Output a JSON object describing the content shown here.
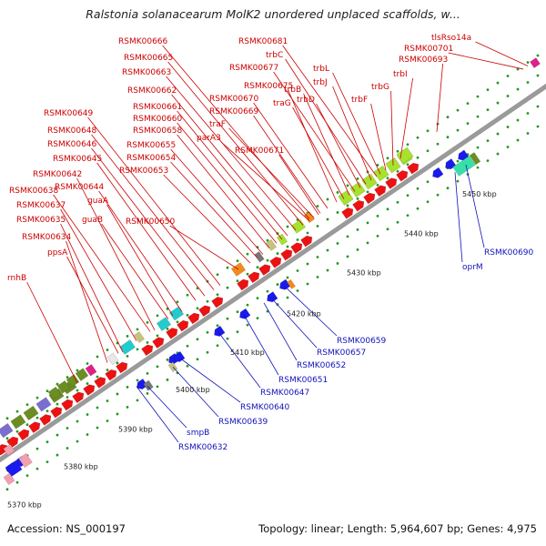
{
  "title": "Ralstonia solanacearum MolK2 unordered unplaced scaffolds, w...",
  "footer": {
    "accession": "Accession: NS_000197",
    "summary": "Topology: linear; Length: 5,964,607 bp; Genes: 4,975"
  },
  "scale_labels": [
    "5370 kbp",
    "5380 kbp",
    "5390 kbp",
    "5400 kbp",
    "5410 kbp",
    "5420 kbp",
    "5430 kbp",
    "5440 kbp",
    "5450 kbp"
  ],
  "upper_labels": [
    "rnhB",
    "RSMK00634",
    "ppsA",
    "RSMK00635",
    "RSMK00637",
    "RSMK00638",
    "RSMK00642",
    "guaB",
    "guaA",
    "RSMK00644",
    "RSMK00645",
    "RSMK00646",
    "RSMK00648",
    "RSMK00649",
    "RSMK00650",
    "RSMK00653",
    "RSMK00654",
    "RSMK00655",
    "RSMK00658",
    "RSMK00660",
    "RSMK00661",
    "RSMK00662",
    "RSMK00663",
    "RSMK00665",
    "RSMK00666",
    "parA3",
    "traF",
    "RSMK00669",
    "RSMK00670",
    "RSMK00671",
    "RSMK00675",
    "traG",
    "trbB",
    "RSMK00677",
    "trbD",
    "trbC",
    "trbJ",
    "RSMK00681",
    "trbL",
    "trbF",
    "trbG",
    "trbI",
    "RSMK00693",
    "RSMK00701",
    "tlsRso14a"
  ],
  "lower_labels": [
    "RSMK00632",
    "smpB",
    "RSMK00639",
    "RSMK00640",
    "RSMK00647",
    "RSMK00651",
    "RSMK00652",
    "RSMK00657",
    "RSMK00659",
    "oprM",
    "RSMK00690"
  ],
  "colors": {
    "axis": "#9a9a9a",
    "axis_dark": "#5a5a5a",
    "plus_arrow": "#ee1111",
    "minus_arrow": "#1a1aee",
    "upper_label": "#cc0000",
    "lower_label": "#1111bb",
    "dot": "#229922",
    "olive": "#6b8e23",
    "lime": "#a6e22e",
    "cyan": "#22cccc",
    "purple": "#7a6fd0",
    "orange": "#f08c1e",
    "pink": "#f0a0b0",
    "magenta": "#e0208a",
    "mint": "#38e0a8",
    "khaki": "#c8c37a"
  }
}
